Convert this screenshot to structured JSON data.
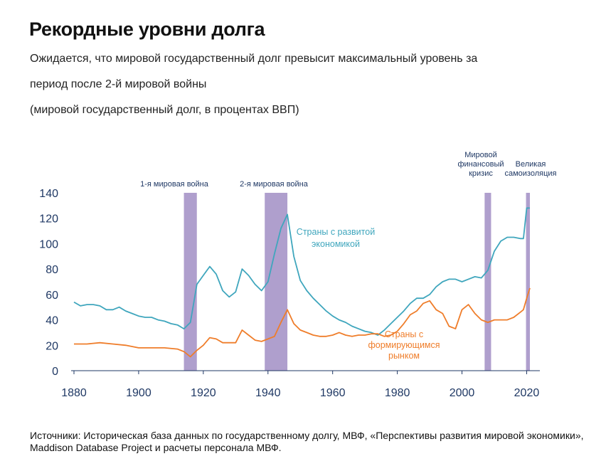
{
  "header": {
    "title": "Рекордные уровни долга",
    "subtitle_line1": "Ожидается, что мировой государственный долг превысит максимальный уровень за",
    "subtitle_line2": "период после 2-й мировой войны",
    "subtitle_line3": "(мировой государственный долг, в процентах ВВП)"
  },
  "source": "Источники: Историческая база данных по государственному долгу, МВФ, «Перспективы развития мировой экономики», Maddison Database Project и расчеты персонала МВФ.",
  "chart_data": {
    "type": "line",
    "xlim": [
      1880,
      2021
    ],
    "ylim": [
      0,
      140
    ],
    "x_ticks": [
      1880,
      1900,
      1920,
      1940,
      1960,
      1980,
      2000,
      2020
    ],
    "y_ticks": [
      0,
      20,
      40,
      60,
      80,
      100,
      120,
      140
    ],
    "grid": false,
    "shaded_periods": [
      {
        "label": "1-я мировая война",
        "start": 1914,
        "end": 1918
      },
      {
        "label": "2-я мировая война",
        "start": 1939,
        "end": 1946
      },
      {
        "label": "Мировой финансовый кризис",
        "start": 2007,
        "end": 2009
      },
      {
        "label": "Великая самоизоляция",
        "start": 2019.8,
        "end": 2021
      }
    ],
    "series": [
      {
        "name": "Страны с развитой экономикой",
        "color": "#3fa6bd",
        "x": [
          1880,
          1882,
          1884,
          1886,
          1888,
          1890,
          1892,
          1894,
          1896,
          1898,
          1900,
          1902,
          1904,
          1906,
          1908,
          1910,
          1912,
          1914,
          1916,
          1918,
          1920,
          1922,
          1924,
          1926,
          1928,
          1930,
          1932,
          1934,
          1936,
          1938,
          1940,
          1942,
          1944,
          1946,
          1948,
          1950,
          1952,
          1954,
          1956,
          1958,
          1960,
          1962,
          1964,
          1966,
          1968,
          1970,
          1972,
          1974,
          1976,
          1978,
          1980,
          1982,
          1984,
          1986,
          1988,
          1990,
          1992,
          1994,
          1996,
          1998,
          2000,
          2002,
          2004,
          2006,
          2008,
          2010,
          2012,
          2014,
          2016,
          2018,
          2019,
          2020,
          2021
        ],
        "y": [
          54,
          51,
          52,
          52,
          51,
          48,
          48,
          50,
          47,
          45,
          43,
          42,
          42,
          40,
          39,
          37,
          36,
          33,
          38,
          68,
          75,
          82,
          76,
          63,
          58,
          62,
          80,
          75,
          68,
          63,
          70,
          92,
          112,
          123,
          90,
          71,
          63,
          57,
          52,
          47,
          43,
          40,
          38,
          35,
          33,
          31,
          30,
          28,
          32,
          37,
          42,
          47,
          53,
          57,
          57,
          60,
          66,
          70,
          72,
          72,
          70,
          72,
          74,
          73,
          79,
          94,
          102,
          105,
          105,
          104,
          104,
          128,
          128
        ]
      },
      {
        "name": "Страны с формирующимся рынком",
        "color": "#ef7d2a",
        "x": [
          1880,
          1884,
          1888,
          1892,
          1896,
          1900,
          1904,
          1908,
          1912,
          1914,
          1916,
          1918,
          1920,
          1922,
          1924,
          1926,
          1928,
          1930,
          1932,
          1934,
          1936,
          1938,
          1940,
          1942,
          1944,
          1946,
          1948,
          1950,
          1952,
          1954,
          1956,
          1958,
          1960,
          1962,
          1964,
          1966,
          1968,
          1970,
          1972,
          1974,
          1976,
          1978,
          1980,
          1982,
          1984,
          1986,
          1988,
          1990,
          1992,
          1994,
          1996,
          1998,
          2000,
          2002,
          2004,
          2006,
          2008,
          2010,
          2012,
          2014,
          2016,
          2018,
          2019,
          2020,
          2021
        ],
        "y": [
          21,
          21,
          22,
          21,
          20,
          18,
          18,
          18,
          17,
          15,
          11,
          16,
          20,
          26,
          25,
          22,
          22,
          22,
          32,
          28,
          24,
          23,
          25,
          27,
          38,
          48,
          37,
          32,
          30,
          28,
          27,
          27,
          28,
          30,
          28,
          27,
          28,
          28,
          29,
          29,
          27,
          28,
          31,
          37,
          44,
          47,
          53,
          55,
          48,
          45,
          35,
          33,
          48,
          52,
          45,
          40,
          38,
          40,
          40,
          40,
          42,
          46,
          48,
          57,
          65
        ]
      }
    ]
  }
}
